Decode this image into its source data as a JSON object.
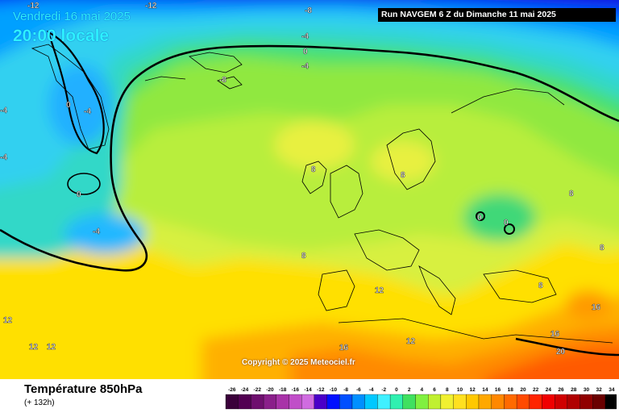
{
  "header": {
    "date_label": "Vendredi 16 mai 2025",
    "time_label": "20:00 locale",
    "run_label": "Run NAVGEM 6 Z du Dimanche 11 mai 2025"
  },
  "map": {
    "copyright": "Copyright © 2025 Meteociel.fr",
    "labels": [
      {
        "text": "-12",
        "where": "top-left edge"
      },
      {
        "text": "-12",
        "where": "top center-left"
      },
      {
        "text": "-8",
        "where": "top center"
      },
      {
        "text": "-4",
        "where": "north Atlantic"
      },
      {
        "text": "0",
        "where": "north Atlantic"
      },
      {
        "text": "-4",
        "where": "north Atlantic"
      },
      {
        "text": "-8",
        "where": "Svalbard"
      },
      {
        "text": "0",
        "where": "Greenland"
      },
      {
        "text": "-4",
        "where": "Greenland"
      },
      {
        "text": "-4",
        "where": "left edge"
      },
      {
        "text": "-4",
        "where": "left edge"
      },
      {
        "text": "0",
        "where": "south of Greenland"
      },
      {
        "text": "-4",
        "where": "mid Atlantic"
      },
      {
        "text": "8",
        "where": "Atlantic"
      },
      {
        "text": "8",
        "where": "Scandinavia"
      },
      {
        "text": "8",
        "where": "Atlantic"
      },
      {
        "text": "0",
        "where": "Poland"
      },
      {
        "text": "0",
        "where": "Ukraine"
      },
      {
        "text": "8",
        "where": "Russia"
      },
      {
        "text": "8",
        "where": "east edge"
      },
      {
        "text": "8",
        "where": "Balkans"
      },
      {
        "text": "12",
        "where": "Bay of Biscay"
      },
      {
        "text": "12",
        "where": "Atlantic west"
      },
      {
        "text": "12",
        "where": "Atlantic south-west"
      },
      {
        "text": "12",
        "where": "Atlantic south-west"
      },
      {
        "text": "12",
        "where": "Mediterranean"
      },
      {
        "text": "16",
        "where": "Algeria"
      },
      {
        "text": "16",
        "where": "Black Sea"
      },
      {
        "text": "16",
        "where": "Turkey"
      },
      {
        "text": "20",
        "where": "Middle East"
      }
    ]
  },
  "footer": {
    "product_title": "Température 850hPa",
    "product_step": "(+ 132h)"
  },
  "scale": {
    "values": [
      "-26",
      "-24",
      "-22",
      "-20",
      "-18",
      "-16",
      "-14",
      "-12",
      "-10",
      "-8",
      "-6",
      "-4",
      "-2",
      "0",
      "2",
      "4",
      "6",
      "8",
      "10",
      "12",
      "14",
      "16",
      "18",
      "20",
      "22",
      "24",
      "26",
      "28",
      "30",
      "32",
      "34"
    ],
    "colors": [
      "#3a003a",
      "#520052",
      "#6e0f6e",
      "#8a1f8a",
      "#a833a8",
      "#c04ec8",
      "#d06ce0",
      "#4a00c8",
      "#0010ff",
      "#0050ff",
      "#0090ff",
      "#00c8ff",
      "#40f0ff",
      "#30f0b0",
      "#40e060",
      "#80f040",
      "#c0f030",
      "#f0f030",
      "#ffe020",
      "#ffc800",
      "#ffa800",
      "#ff8800",
      "#ff6a00",
      "#ff4a00",
      "#ff2400",
      "#f00000",
      "#d00000",
      "#b00000",
      "#900000",
      "#6a0000",
      "#000000"
    ]
  }
}
